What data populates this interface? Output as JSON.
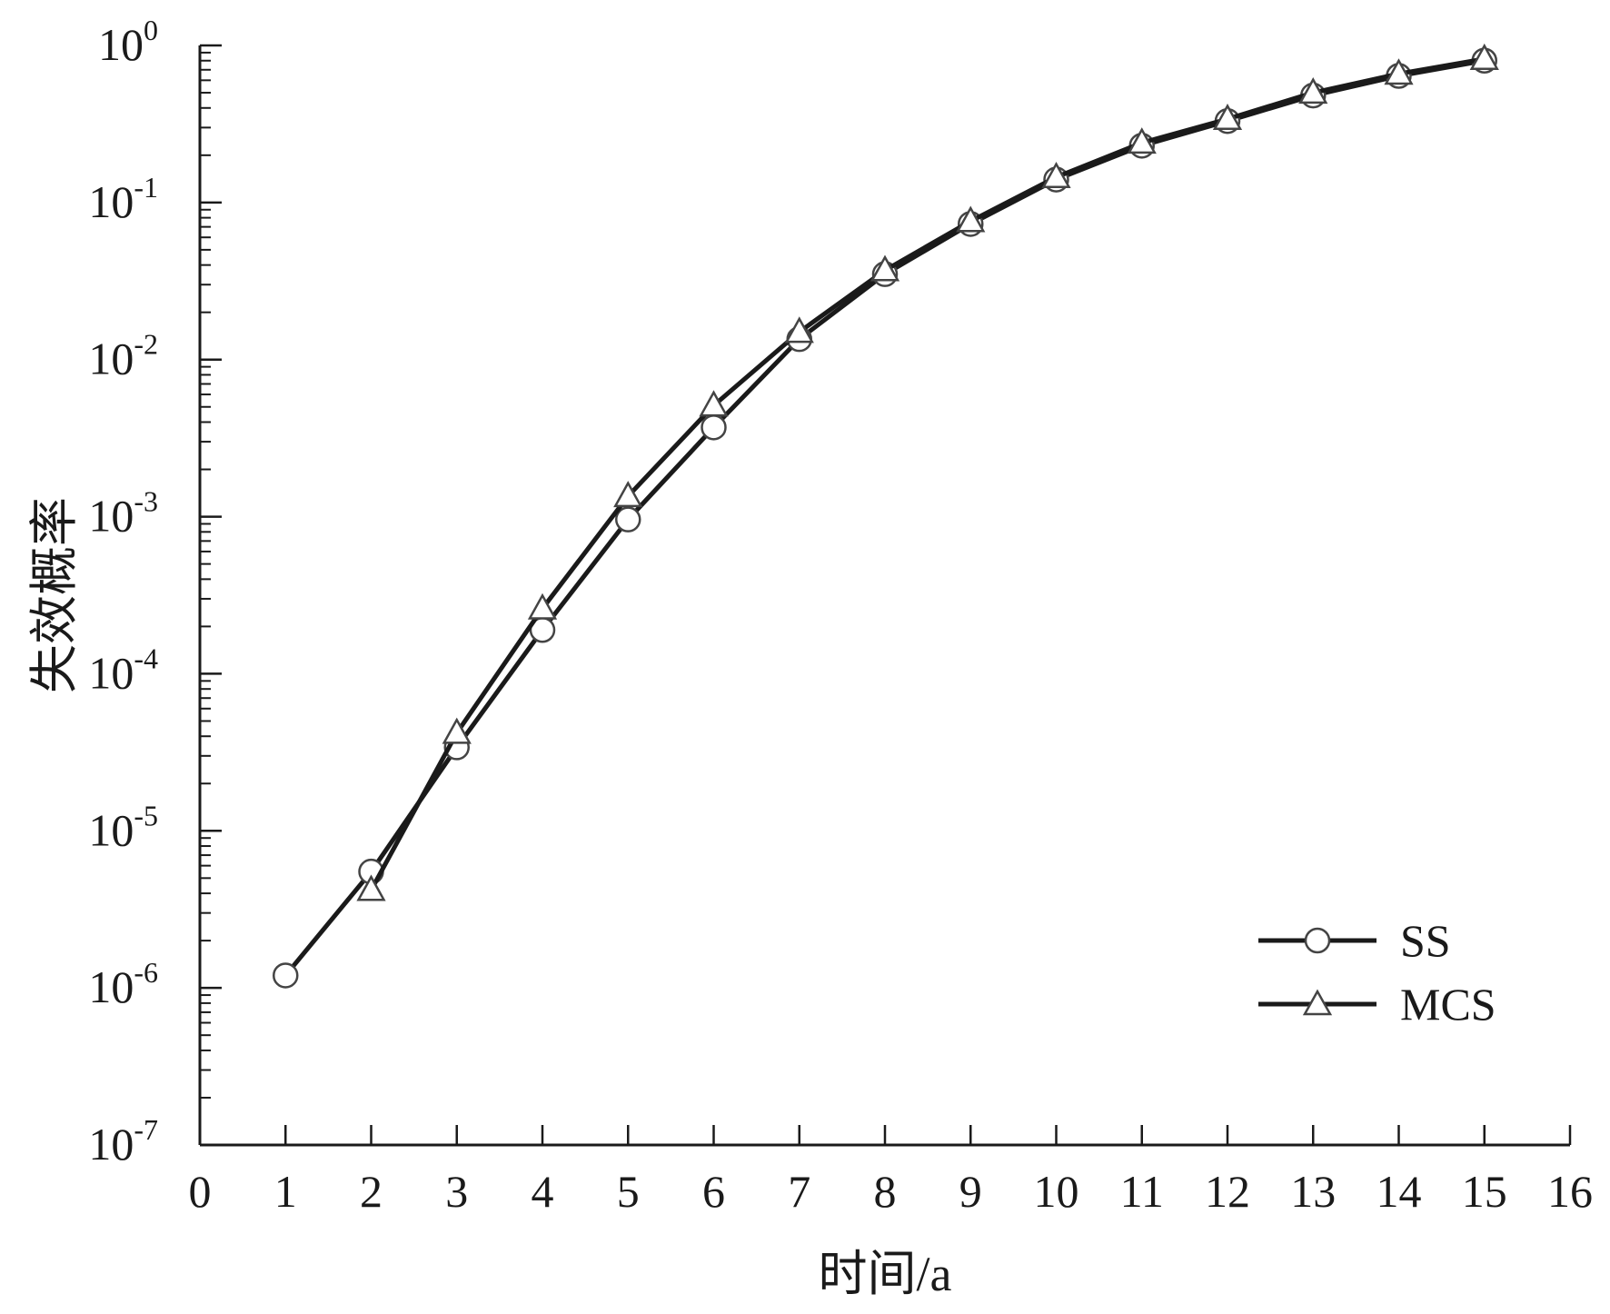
{
  "chart_data": {
    "type": "line",
    "title": "",
    "xlabel": "时间/a",
    "ylabel": "失效概率",
    "xlim": [
      0,
      16
    ],
    "ylim": [
      1e-07,
      1
    ],
    "yscale": "log",
    "x_ticks": [
      "0",
      "1",
      "2",
      "3",
      "4",
      "5",
      "6",
      "7",
      "8",
      "9",
      "10",
      "11",
      "12",
      "13",
      "14",
      "15",
      "16"
    ],
    "y_ticks": [
      {
        "base": "10",
        "exp": "0",
        "value": 1
      },
      {
        "base": "10",
        "exp": "-1",
        "value": 0.1
      },
      {
        "base": "10",
        "exp": "-2",
        "value": 0.01
      },
      {
        "base": "10",
        "exp": "-3",
        "value": 0.001
      },
      {
        "base": "10",
        "exp": "-4",
        "value": 0.0001
      },
      {
        "base": "10",
        "exp": "-5",
        "value": 1e-05
      },
      {
        "base": "10",
        "exp": "-6",
        "value": 1e-06
      },
      {
        "base": "10",
        "exp": "-7",
        "value": 1e-07
      }
    ],
    "grid": false,
    "legend_position": "bottom-right",
    "series": [
      {
        "name": "SS",
        "marker": "circle",
        "color": "#1a1a1a",
        "x": [
          1,
          2,
          3,
          4,
          5,
          6,
          7,
          8,
          9,
          10,
          11,
          12,
          13,
          14,
          15
        ],
        "y": [
          1.2e-06,
          5.5e-06,
          3.4e-05,
          0.00019,
          0.00096,
          0.0037,
          0.0135,
          0.035,
          0.073,
          0.14,
          0.23,
          0.33,
          0.48,
          0.64,
          0.8
        ]
      },
      {
        "name": "MCS",
        "marker": "triangle",
        "color": "#1a1a1a",
        "x": [
          2,
          3,
          4,
          5,
          6,
          7,
          8,
          9,
          10,
          11,
          12,
          13,
          14,
          15
        ],
        "y": [
          4.2e-06,
          4.2e-05,
          0.00026,
          0.00135,
          0.0051,
          0.015,
          0.037,
          0.076,
          0.145,
          0.24,
          0.34,
          0.5,
          0.66,
          0.82
        ]
      }
    ]
  }
}
